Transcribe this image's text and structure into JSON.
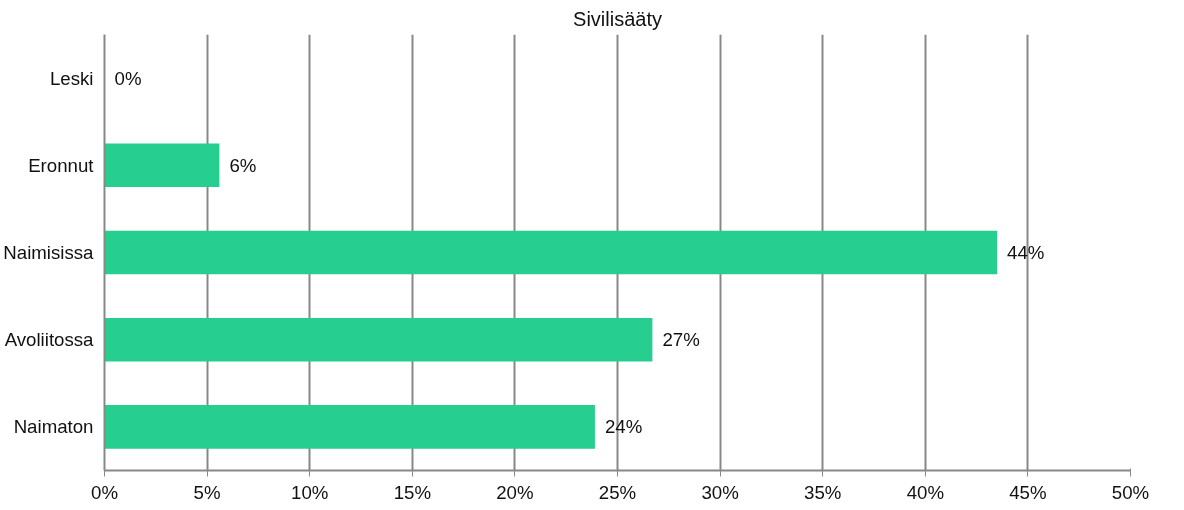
{
  "chart_data": {
    "type": "bar",
    "orientation": "horizontal",
    "title": "Sivilisääty",
    "categories": [
      "Leski",
      "Eronnut",
      "Naimisissa",
      "Avoliitossa",
      "Naimaton"
    ],
    "values": [
      0,
      5.6,
      43.5,
      26.7,
      23.9
    ],
    "value_labels": [
      "0%",
      "6%",
      "44%",
      "27%",
      "24%"
    ],
    "color": "#26ce8f",
    "xlim": [
      0,
      50
    ],
    "xticks": [
      {
        "value": 0,
        "label": "0%"
      },
      {
        "value": 5,
        "label": "5%"
      },
      {
        "value": 10,
        "label": "10%"
      },
      {
        "value": 15,
        "label": "15%"
      },
      {
        "value": 20,
        "label": "20%"
      },
      {
        "value": 25,
        "label": "25%"
      },
      {
        "value": 30,
        "label": "30%"
      },
      {
        "value": 35,
        "label": "35%"
      },
      {
        "value": 40,
        "label": "40%"
      },
      {
        "value": 45,
        "label": "45%"
      },
      {
        "value": 50,
        "label": "50%"
      }
    ],
    "grid": "x"
  }
}
